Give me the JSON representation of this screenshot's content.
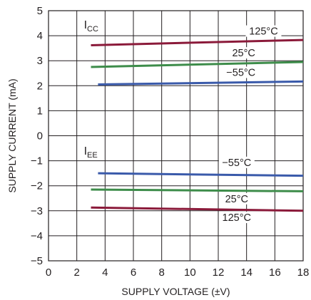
{
  "chart_data": {
    "type": "line",
    "xlabel": "SUPPLY VOLTAGE (±V)",
    "ylabel": "SUPPLY CURRENT (mA)",
    "xlim": [
      0,
      18
    ],
    "ylim": [
      -5,
      5
    ],
    "xticks": [
      "0",
      "2",
      "4",
      "6",
      "8",
      "10",
      "12",
      "14",
      "16",
      "18"
    ],
    "yticks": [
      "5",
      "4",
      "3",
      "2",
      "1",
      "0",
      "−1",
      "−2",
      "−3",
      "−4",
      "−5"
    ],
    "grid": true,
    "group_labels": [
      {
        "main": "I",
        "sub": "CC"
      },
      {
        "main": "I",
        "sub": "EE"
      }
    ],
    "series": [
      {
        "name": "125°C",
        "color": "#8b1a3a",
        "x": [
          3,
          18
        ],
        "y": [
          3.62,
          3.83
        ]
      },
      {
        "name": "25°C",
        "color": "#3d8c4a",
        "x": [
          3,
          18
        ],
        "y": [
          2.75,
          2.95
        ]
      },
      {
        "name": "−55°C",
        "color": "#3a5aaa",
        "x": [
          3.5,
          18
        ],
        "y": [
          2.05,
          2.17
        ]
      },
      {
        "name": "−55°C",
        "color": "#3a5aaa",
        "x": [
          3.5,
          18
        ],
        "y": [
          -1.5,
          -1.6
        ]
      },
      {
        "name": "25°C",
        "color": "#3d8c4a",
        "x": [
          3,
          18
        ],
        "y": [
          -2.15,
          -2.22
        ]
      },
      {
        "name": "125°C",
        "color": "#8b1a3a",
        "x": [
          3,
          18
        ],
        "y": [
          -2.87,
          -3.0
        ]
      }
    ]
  }
}
